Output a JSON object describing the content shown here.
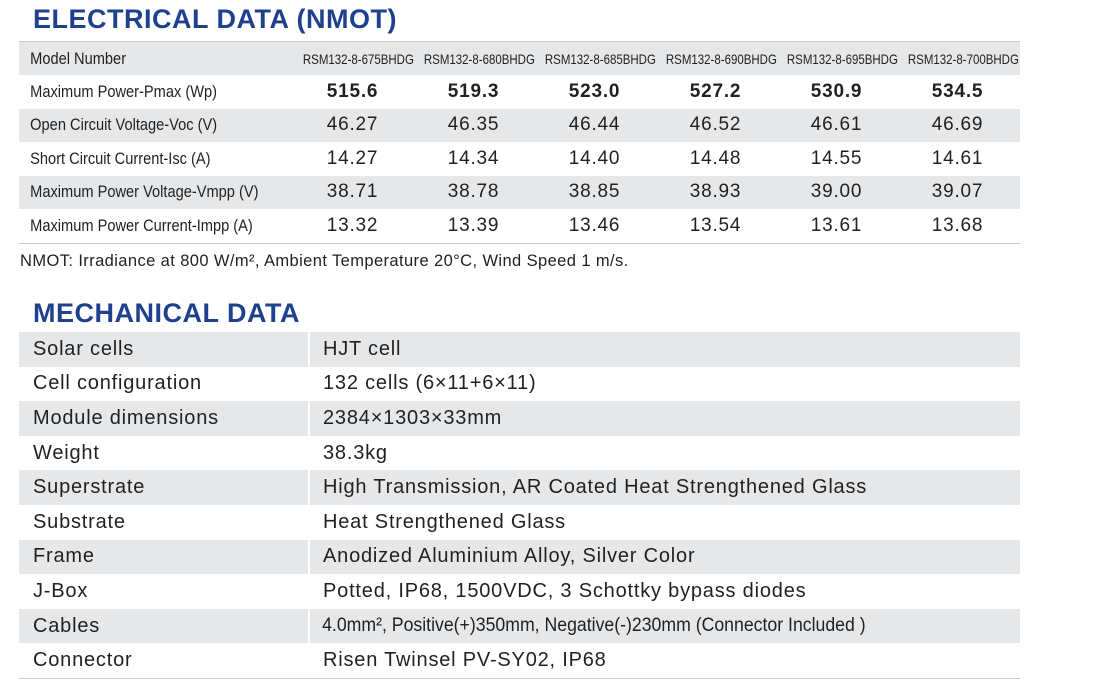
{
  "electrical": {
    "title": "ELECTRICAL DATA (NMOT)",
    "header_label": "Model Number",
    "models": [
      "RSM132-8-675BHDG",
      "RSM132-8-680BHDG",
      "RSM132-8-685BHDG",
      "RSM132-8-690BHDG",
      "RSM132-8-695BHDG",
      "RSM132-8-700BHDG"
    ],
    "rows": [
      {
        "label": "Maximum Power-Pmax (Wp)",
        "values": [
          "515.6",
          "519.3",
          "523.0",
          "527.2",
          "530.9",
          "534.5"
        ]
      },
      {
        "label": "Open Circuit Voltage-Voc (V)",
        "values": [
          "46.27",
          "46.35",
          "46.44",
          "46.52",
          "46.61",
          "46.69"
        ]
      },
      {
        "label": "Short Circuit Current-Isc (A)",
        "values": [
          "14.27",
          "14.34",
          "14.40",
          "14.48",
          "14.55",
          "14.61"
        ]
      },
      {
        "label": "Maximum Power Voltage-Vmpp (V)",
        "values": [
          "38.71",
          "38.78",
          "38.85",
          "38.93",
          "39.00",
          "39.07"
        ]
      },
      {
        "label": "Maximum Power Current-Impp (A)",
        "values": [
          "13.32",
          "13.39",
          "13.46",
          "13.54",
          "13.61",
          "13.68"
        ]
      }
    ],
    "note": "NMOT: Irradiance at 800 W/m², Ambient Temperature 20°C, Wind Speed 1 m/s."
  },
  "mechanical": {
    "title": "MECHANICAL DATA",
    "rows": [
      {
        "key": "Solar cells",
        "value": "HJT cell"
      },
      {
        "key": "Cell configuration",
        "value": "132 cells (6×11+6×11)"
      },
      {
        "key": "Module dimensions",
        "value": "2384×1303×33mm"
      },
      {
        "key": "Weight",
        "value": "38.3kg"
      },
      {
        "key": "Superstrate",
        "value": "High Transmission, AR Coated Heat Strengthened Glass"
      },
      {
        "key": "Substrate",
        "value": "Heat Strengthened Glass"
      },
      {
        "key": "Frame",
        "value": "Anodized Aluminium Alloy, Silver Color"
      },
      {
        "key": "J-Box",
        "value": "Potted, IP68, 1500VDC, 3 Schottky bypass diodes"
      },
      {
        "key": "Cables",
        "value": "4.0mm², Positive(+)350mm, Negative(-)230mm (Connector Included )"
      },
      {
        "key": "Connector",
        "value": "Risen Twinsel PV-SY02, IP68"
      }
    ]
  }
}
